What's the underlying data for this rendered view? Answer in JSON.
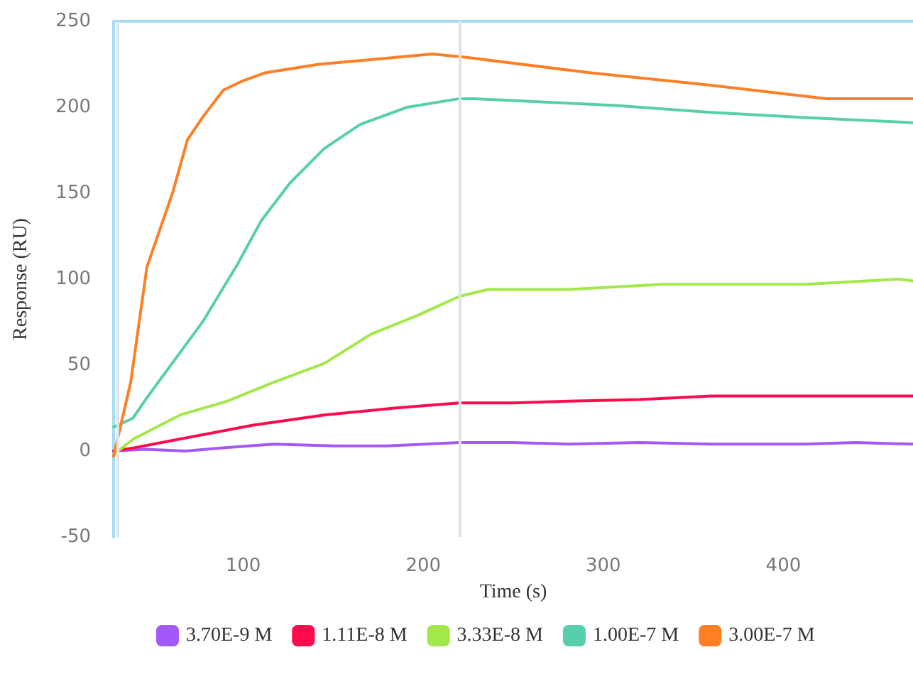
{
  "chart_data": {
    "type": "line",
    "xlabel": "Time (s)",
    "ylabel": "Response (RU)",
    "xlim": [
      28,
      472
    ],
    "xticks": [
      100,
      200,
      300,
      400
    ],
    "ylim": [
      -50,
      250
    ],
    "yticks": [
      -50,
      0,
      50,
      100,
      150,
      200,
      250
    ],
    "grid": false,
    "legend": "bottom",
    "marker": "none",
    "line_style": "solid",
    "ref_lines": [
      {
        "axis": "x",
        "value": 30,
        "label": null,
        "color": "#dde3ea"
      },
      {
        "axis": "x",
        "value": 220,
        "label": null,
        "color": "#dde3ea"
      }
    ],
    "series": [
      {
        "name": "3.70E-9 M",
        "color": "#a259f7",
        "x": [
          28,
          45,
          68,
          90,
          117,
          150,
          180,
          220,
          250,
          281,
          320,
          360,
          412,
          440,
          472
        ],
        "values": [
          0,
          1,
          0,
          2,
          4,
          3,
          3,
          5,
          5,
          4,
          5,
          4,
          4,
          5,
          4
        ]
      },
      {
        "name": "1.11E-8 M",
        "color": "#ff0a4b",
        "x": [
          28,
          40,
          65,
          105,
          145,
          184,
          220,
          250,
          281,
          320,
          360,
          412,
          464,
          472
        ],
        "values": [
          0,
          2,
          7,
          15,
          21,
          25,
          28,
          28,
          29,
          30,
          32,
          32,
          32,
          32
        ]
      },
      {
        "name": "3.33E-8 M",
        "color": "#a3e84a",
        "x": [
          28,
          39,
          65,
          91,
          117,
          145,
          171,
          197,
          220,
          236,
          281,
          333,
          412,
          464,
          472
        ],
        "values": [
          -2,
          7,
          21,
          29,
          40,
          51,
          68,
          79,
          90,
          94,
          94,
          97,
          97,
          100,
          99
        ]
      },
      {
        "name": "1.00E-7 M",
        "color": "#58cfac",
        "x": [
          28,
          38.6,
          46.5,
          78,
          97,
          110,
          126,
          145,
          165,
          191,
          220,
          228,
          307,
          360,
          412,
          472
        ],
        "values": [
          14,
          19,
          31,
          76,
          109,
          134,
          156,
          176,
          190,
          200,
          205,
          205,
          201,
          197,
          194,
          191
        ]
      },
      {
        "name": "3.00E-7 M",
        "color": "#ff7f24",
        "x": [
          28,
          37.5,
          46.5,
          61,
          69,
          78,
          89,
          99,
          112,
          142,
          205,
          224,
          293,
          358,
          424,
          472
        ],
        "values": [
          -3,
          40,
          107,
          151,
          181,
          195,
          210,
          215,
          220,
          225,
          231,
          229,
          220,
          213,
          205,
          205
        ]
      }
    ]
  }
}
